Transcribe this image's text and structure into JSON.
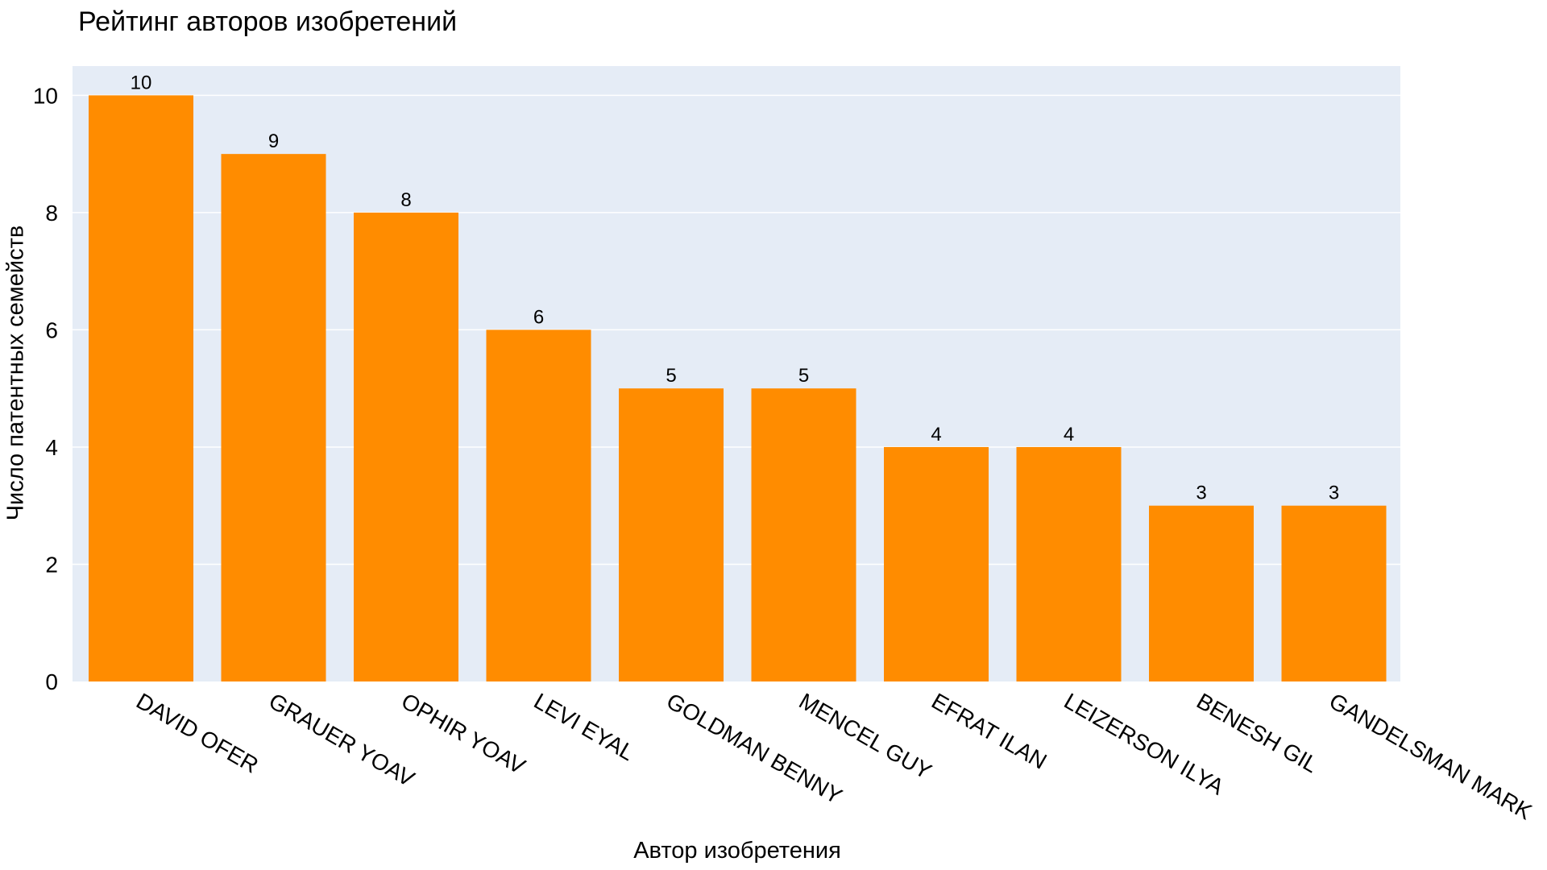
{
  "chart_data": {
    "type": "bar",
    "title": "Рейтинг авторов изобретений",
    "xlabel": "Автор изобретения",
    "ylabel": "Число патентных семейств",
    "categories": [
      "DAVID OFER",
      "GRAUER YOAV",
      "OPHIR YOAV",
      "LEVI EYAL",
      "GOLDMAN BENNY",
      "MENCEL GUY",
      "EFRAT ILAN",
      "LEIZERSON ILYA",
      "BENESH GIL",
      "GANDELSMAN MARK"
    ],
    "values": [
      10,
      9,
      8,
      6,
      5,
      5,
      4,
      4,
      3,
      3
    ],
    "data_labels": [
      "10",
      "9",
      "8",
      "6",
      "5",
      "5",
      "4",
      "4",
      "3",
      "3"
    ],
    "ylim": [
      0,
      10.5
    ],
    "yticks": [
      0,
      2,
      4,
      6,
      8,
      10
    ],
    "ytick_labels": [
      "0",
      "2",
      "4",
      "6",
      "8",
      "10"
    ],
    "grid": true,
    "colors": {
      "bar": "#FF8C00",
      "plot_background": "#E5ECF6",
      "gridline": "#FFFFFF"
    }
  }
}
